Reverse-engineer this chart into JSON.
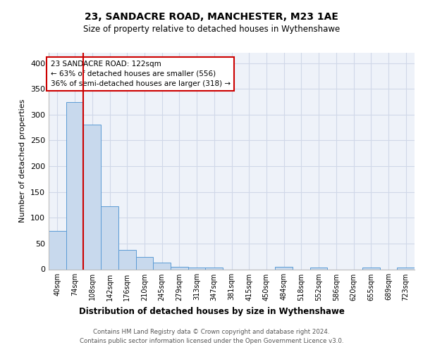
{
  "title1": "23, SANDACRE ROAD, MANCHESTER, M23 1AE",
  "title2": "Size of property relative to detached houses in Wythenshawe",
  "xlabel": "Distribution of detached houses by size in Wythenshawe",
  "ylabel": "Number of detached properties",
  "footer1": "Contains HM Land Registry data © Crown copyright and database right 2024.",
  "footer2": "Contains public sector information licensed under the Open Government Licence v3.0.",
  "bin_labels": [
    "40sqm",
    "74sqm",
    "108sqm",
    "142sqm",
    "176sqm",
    "210sqm",
    "245sqm",
    "279sqm",
    "313sqm",
    "347sqm",
    "381sqm",
    "415sqm",
    "450sqm",
    "484sqm",
    "518sqm",
    "552sqm",
    "586sqm",
    "620sqm",
    "655sqm",
    "689sqm",
    "723sqm"
  ],
  "bar_values": [
    75,
    325,
    280,
    122,
    38,
    24,
    13,
    5,
    4,
    4,
    0,
    0,
    0,
    5,
    0,
    3,
    0,
    0,
    3,
    0,
    3
  ],
  "bar_color": "#c8d9ed",
  "bar_edge_color": "#5b9bd5",
  "property_line_color": "#cc0000",
  "annotation_text": "23 SANDACRE ROAD: 122sqm\n← 63% of detached houses are smaller (556)\n36% of semi-detached houses are larger (318) →",
  "annotation_box_color": "#cc0000",
  "ylim": [
    0,
    420
  ],
  "yticks": [
    0,
    50,
    100,
    150,
    200,
    250,
    300,
    350,
    400
  ],
  "grid_color": "#d0d8e8",
  "bg_color": "#eef2f9"
}
